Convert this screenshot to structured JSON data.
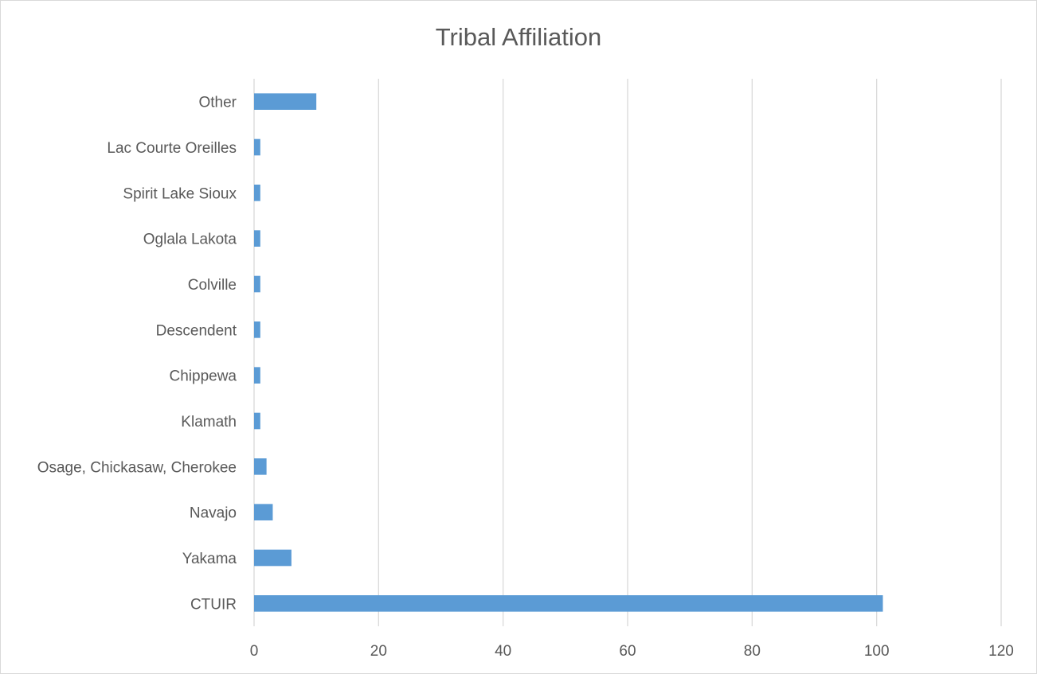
{
  "chart_data": {
    "type": "bar",
    "orientation": "horizontal",
    "title": "Tribal Affiliation",
    "xlabel": "",
    "ylabel": "",
    "categories": [
      "CTUIR",
      "Yakama",
      "Navajo",
      "Osage, Chickasaw, Cherokee",
      "Klamath",
      "Chippewa",
      "Descendent",
      "Colville",
      "Oglala Lakota",
      "Spirit Lake Sioux",
      "Lac Courte Oreilles",
      "Other"
    ],
    "values": [
      101,
      6,
      3,
      2,
      1,
      1,
      1,
      1,
      1,
      1,
      1,
      10
    ],
    "xlim": [
      0,
      120
    ],
    "xticks": [
      0,
      20,
      40,
      60,
      80,
      100,
      120
    ],
    "grid": "vertical",
    "legend": "none",
    "colors": {
      "bar": "#5b9bd5",
      "grid": "#d9d9d9",
      "text": "#595959"
    }
  }
}
